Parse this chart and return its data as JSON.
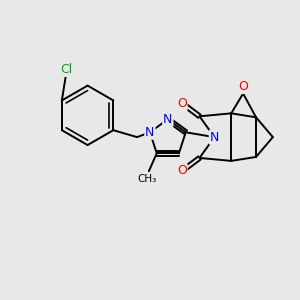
{
  "background_color": "#e8e8e8",
  "atom_colors": {
    "N": "#0000ff",
    "O": "#ff0000",
    "Cl": "#00aa00",
    "C": "#000000"
  },
  "bond_lw": 1.4,
  "font_size": 9.0
}
